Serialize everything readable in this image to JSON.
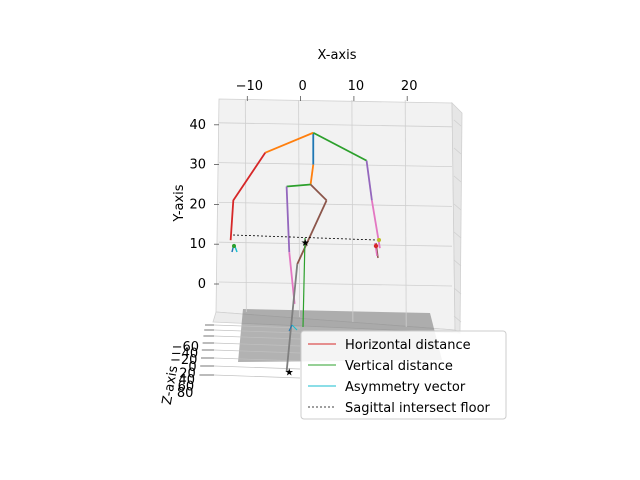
{
  "chart_data": {
    "type": "3d-line",
    "title": "",
    "xlabel": "X-axis",
    "ylabel": "Y-axis",
    "zlabel": "Z-axis",
    "x_ticks": [
      "−10",
      "0",
      "10",
      "20"
    ],
    "y_ticks": [
      "40",
      "30",
      "20",
      "10",
      "0"
    ],
    "z_ticks": [
      "−60",
      "−40",
      "−20",
      "0",
      "20",
      "40",
      "60",
      "80"
    ],
    "xlim": [
      -16,
      27
    ],
    "ylim": [
      -12,
      46
    ],
    "zlim": [
      -70,
      85
    ],
    "grid": true,
    "legend_position": "lower-right",
    "skeleton": [
      {
        "color": "#1f77b4",
        "points": [
          [
            2,
            38
          ],
          [
            2,
            30
          ]
        ]
      },
      {
        "color": "#ff7f0e",
        "points": [
          [
            2,
            38
          ],
          [
            -7,
            33
          ]
        ]
      },
      {
        "color": "#d62728",
        "points": [
          [
            -7,
            33
          ],
          [
            -13,
            21
          ],
          [
            -13.5,
            11
          ]
        ]
      },
      {
        "color": "#2ca02c",
        "points": [
          [
            2,
            38
          ],
          [
            12,
            31
          ]
        ]
      },
      {
        "color": "#9467bd",
        "points": [
          [
            12,
            31
          ],
          [
            13,
            21
          ]
        ]
      },
      {
        "color": "#e377c2",
        "points": [
          [
            13,
            21
          ],
          [
            14.5,
            9
          ]
        ]
      },
      {
        "color": "#ff7f0e",
        "points": [
          [
            2,
            30
          ],
          [
            1.5,
            25
          ]
        ]
      },
      {
        "color": "#2ca02c",
        "points": [
          [
            1.5,
            25
          ],
          [
            -3,
            24.5
          ]
        ]
      },
      {
        "color": "#9467bd",
        "points": [
          [
            -3,
            24.5
          ],
          [
            -2.5,
            8
          ]
        ]
      },
      {
        "color": "#e377c2",
        "points": [
          [
            -2.5,
            8
          ],
          [
            -1.5,
            -5
          ]
        ]
      },
      {
        "color": "#8c564b",
        "points": [
          [
            1.5,
            25
          ],
          [
            4.5,
            21
          ]
        ]
      },
      {
        "color": "#8c564b",
        "points": [
          [
            4.5,
            21
          ],
          [
            -1,
            5
          ]
        ]
      },
      {
        "color": "#7f7f7f",
        "points": [
          [
            -1,
            5
          ],
          [
            -3,
            -22
          ]
        ]
      }
    ],
    "markers": [
      {
        "label": "star",
        "x": 0.5,
        "y": 10.5
      },
      {
        "label": "star",
        "x": -2.5,
        "y": -22
      }
    ],
    "series": [
      {
        "name": "Horizontal distance",
        "color": "#d62728",
        "style": "solid"
      },
      {
        "name": "Vertical distance",
        "color": "#2ca02c",
        "style": "solid"
      },
      {
        "name": "Asymmetry vector",
        "color": "#17becf",
        "style": "solid"
      },
      {
        "name": "Sagittal intersect floor",
        "color": "#000000",
        "style": "dashed"
      }
    ]
  }
}
